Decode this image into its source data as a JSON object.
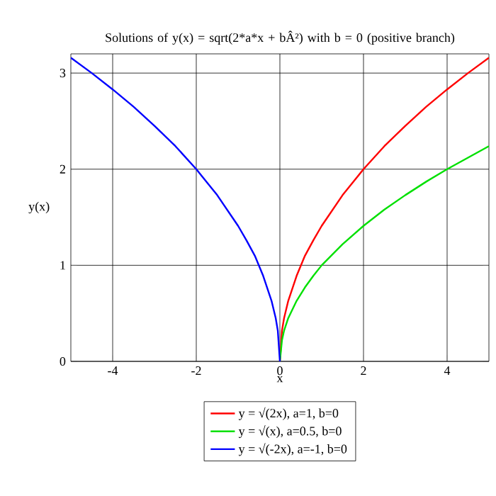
{
  "chart_data": {
    "type": "line",
    "title": "Solutions of y(x) = sqrt(2*a*x + bÂ²) with b = 0 (positive branch)",
    "xlabel": "x",
    "ylabel": "y(x)",
    "xlim": [
      -5,
      5
    ],
    "ylim": [
      0,
      3.2
    ],
    "xticks": [
      -4,
      -2,
      0,
      2,
      4
    ],
    "yticks": [
      0,
      1,
      2,
      3
    ],
    "grid": true,
    "legend": "bottom",
    "marker": "none",
    "line_style": "solid",
    "series": [
      {
        "name": "y = √(2x), a=1, b=0",
        "color": "#ff0000",
        "x": [
          0,
          0.05,
          0.1,
          0.2,
          0.4,
          0.6,
          0.8,
          1,
          1.5,
          2,
          2.5,
          3,
          3.5,
          4,
          4.5,
          5
        ],
        "values": [
          0,
          0.32,
          0.45,
          0.63,
          0.89,
          1.1,
          1.26,
          1.41,
          1.73,
          2,
          2.24,
          2.45,
          2.65,
          2.83,
          3,
          3.16
        ]
      },
      {
        "name": "y = √(x), a=0.5, b=0",
        "color": "#00e000",
        "x": [
          0,
          0.05,
          0.1,
          0.2,
          0.4,
          0.6,
          0.8,
          1,
          1.5,
          2,
          2.5,
          3,
          3.5,
          4,
          4.5,
          5
        ],
        "values": [
          0,
          0.22,
          0.32,
          0.45,
          0.63,
          0.77,
          0.89,
          1,
          1.22,
          1.41,
          1.58,
          1.73,
          1.87,
          2,
          2.12,
          2.24
        ]
      },
      {
        "name": "y = √(-2x), a=-1, b=0",
        "color": "#0000ff",
        "x": [
          -5,
          -4.5,
          -4,
          -3.5,
          -3,
          -2.5,
          -2,
          -1.5,
          -1,
          -0.8,
          -0.6,
          -0.4,
          -0.2,
          -0.1,
          -0.05,
          0
        ],
        "values": [
          3.16,
          3,
          2.83,
          2.65,
          2.45,
          2.24,
          2,
          1.73,
          1.41,
          1.26,
          1.1,
          0.89,
          0.63,
          0.45,
          0.32,
          0
        ]
      }
    ]
  }
}
